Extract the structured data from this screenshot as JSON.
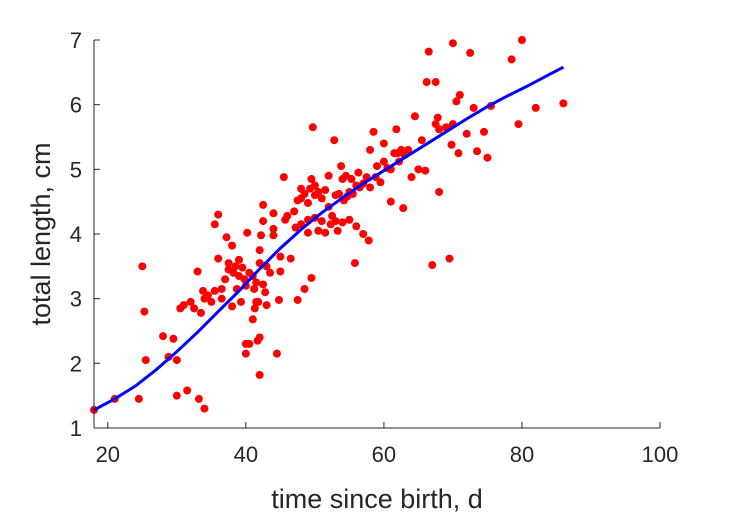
{
  "chart_data": {
    "type": "scatter",
    "xlabel": "time since birth, d",
    "ylabel": "total length, cm",
    "xlim": [
      18,
      100
    ],
    "ylim": [
      1,
      7
    ],
    "xticks": [
      20,
      40,
      60,
      80,
      100
    ],
    "yticks": [
      1,
      2,
      3,
      4,
      5,
      6,
      7
    ],
    "grid": false,
    "colors": {
      "points": "#ff0000",
      "curve": "#0000ff",
      "axes": "#262626"
    },
    "points": [
      {
        "x": 18,
        "y": 1.28
      },
      {
        "x": 21,
        "y": 1.45
      },
      {
        "x": 24.5,
        "y": 1.45
      },
      {
        "x": 25,
        "y": 3.5
      },
      {
        "x": 25.3,
        "y": 2.8
      },
      {
        "x": 25.5,
        "y": 2.05
      },
      {
        "x": 28,
        "y": 2.42
      },
      {
        "x": 28.8,
        "y": 2.1
      },
      {
        "x": 29.5,
        "y": 2.38
      },
      {
        "x": 30,
        "y": 1.5
      },
      {
        "x": 30,
        "y": 2.05
      },
      {
        "x": 30.5,
        "y": 2.85
      },
      {
        "x": 31,
        "y": 2.9
      },
      {
        "x": 31.5,
        "y": 1.58
      },
      {
        "x": 32,
        "y": 2.95
      },
      {
        "x": 32.5,
        "y": 2.85
      },
      {
        "x": 33,
        "y": 3.42
      },
      {
        "x": 33.2,
        "y": 1.45
      },
      {
        "x": 33.5,
        "y": 2.78
      },
      {
        "x": 33.8,
        "y": 3.12
      },
      {
        "x": 34,
        "y": 1.3
      },
      {
        "x": 34,
        "y": 3.0
      },
      {
        "x": 34.5,
        "y": 3.05
      },
      {
        "x": 35,
        "y": 2.95
      },
      {
        "x": 35.5,
        "y": 3.12
      },
      {
        "x": 35.5,
        "y": 4.15
      },
      {
        "x": 36,
        "y": 4.3
      },
      {
        "x": 36,
        "y": 3.62
      },
      {
        "x": 36.5,
        "y": 3.0
      },
      {
        "x": 36.5,
        "y": 3.15
      },
      {
        "x": 37,
        "y": 3.3
      },
      {
        "x": 37.2,
        "y": 3.95
      },
      {
        "x": 37.5,
        "y": 3.45
      },
      {
        "x": 37.5,
        "y": 3.55
      },
      {
        "x": 38,
        "y": 3.82
      },
      {
        "x": 38,
        "y": 2.88
      },
      {
        "x": 38.2,
        "y": 3.4
      },
      {
        "x": 38.5,
        "y": 3.5
      },
      {
        "x": 38.7,
        "y": 3.15
      },
      {
        "x": 39,
        "y": 3.35
      },
      {
        "x": 39,
        "y": 3.6
      },
      {
        "x": 39.3,
        "y": 2.95
      },
      {
        "x": 39.5,
        "y": 3.48
      },
      {
        "x": 39.8,
        "y": 3.3
      },
      {
        "x": 40,
        "y": 2.15
      },
      {
        "x": 40,
        "y": 2.3
      },
      {
        "x": 40,
        "y": 3.2
      },
      {
        "x": 40.2,
        "y": 4.02
      },
      {
        "x": 40.5,
        "y": 3.4
      },
      {
        "x": 40.5,
        "y": 2.3
      },
      {
        "x": 41,
        "y": 3.35
      },
      {
        "x": 41,
        "y": 2.68
      },
      {
        "x": 41.2,
        "y": 3.15
      },
      {
        "x": 41.3,
        "y": 2.85
      },
      {
        "x": 41.5,
        "y": 3.25
      },
      {
        "x": 41.5,
        "y": 2.95
      },
      {
        "x": 41.7,
        "y": 2.35
      },
      {
        "x": 41.8,
        "y": 2.95
      },
      {
        "x": 42,
        "y": 2.4
      },
      {
        "x": 42,
        "y": 1.82
      },
      {
        "x": 42,
        "y": 3.55
      },
      {
        "x": 42,
        "y": 3.75
      },
      {
        "x": 42.2,
        "y": 3.98
      },
      {
        "x": 42.5,
        "y": 4.45
      },
      {
        "x": 42.5,
        "y": 4.2
      },
      {
        "x": 42.5,
        "y": 3.22
      },
      {
        "x": 42.8,
        "y": 3.1
      },
      {
        "x": 43,
        "y": 3.5
      },
      {
        "x": 43,
        "y": 2.9
      },
      {
        "x": 43.5,
        "y": 3.4
      },
      {
        "x": 44,
        "y": 4.32
      },
      {
        "x": 44,
        "y": 4.08
      },
      {
        "x": 44,
        "y": 3.98
      },
      {
        "x": 44.5,
        "y": 2.15
      },
      {
        "x": 44.8,
        "y": 2.98
      },
      {
        "x": 45,
        "y": 3.65
      },
      {
        "x": 45,
        "y": 3.42
      },
      {
        "x": 45.5,
        "y": 4.88
      },
      {
        "x": 45.7,
        "y": 4.22
      },
      {
        "x": 46,
        "y": 4.28
      },
      {
        "x": 46.5,
        "y": 3.62
      },
      {
        "x": 47,
        "y": 4.35
      },
      {
        "x": 47.2,
        "y": 4.1
      },
      {
        "x": 47.5,
        "y": 2.98
      },
      {
        "x": 47.5,
        "y": 4.52
      },
      {
        "x": 48,
        "y": 4.15
      },
      {
        "x": 48,
        "y": 4.55
      },
      {
        "x": 48,
        "y": 4.7
      },
      {
        "x": 48.5,
        "y": 3.15
      },
      {
        "x": 48.5,
        "y": 4.62
      },
      {
        "x": 49,
        "y": 4.22
      },
      {
        "x": 49,
        "y": 4.48
      },
      {
        "x": 49,
        "y": 4.02
      },
      {
        "x": 49.3,
        "y": 4.7
      },
      {
        "x": 49.5,
        "y": 3.32
      },
      {
        "x": 49.5,
        "y": 4.85
      },
      {
        "x": 49.7,
        "y": 5.65
      },
      {
        "x": 50,
        "y": 4.75
      },
      {
        "x": 50,
        "y": 4.6
      },
      {
        "x": 50,
        "y": 4.25
      },
      {
        "x": 50.5,
        "y": 4.05
      },
      {
        "x": 50.5,
        "y": 4.65
      },
      {
        "x": 51,
        "y": 4.55
      },
      {
        "x": 51,
        "y": 4.2
      },
      {
        "x": 51.5,
        "y": 4.02
      },
      {
        "x": 51.5,
        "y": 4.68
      },
      {
        "x": 52,
        "y": 4.9
      },
      {
        "x": 52,
        "y": 4.42
      },
      {
        "x": 52.3,
        "y": 4.15
      },
      {
        "x": 52.5,
        "y": 4.28
      },
      {
        "x": 52.8,
        "y": 5.45
      },
      {
        "x": 53,
        "y": 4.6
      },
      {
        "x": 53,
        "y": 4.2
      },
      {
        "x": 53.3,
        "y": 4.05
      },
      {
        "x": 53.5,
        "y": 4.62
      },
      {
        "x": 53.8,
        "y": 5.05
      },
      {
        "x": 54,
        "y": 4.85
      },
      {
        "x": 54,
        "y": 4.18
      },
      {
        "x": 54.2,
        "y": 4.52
      },
      {
        "x": 54.5,
        "y": 4.9
      },
      {
        "x": 54.7,
        "y": 4.58
      },
      {
        "x": 55,
        "y": 4.22
      },
      {
        "x": 55,
        "y": 4.65
      },
      {
        "x": 55.3,
        "y": 4.85
      },
      {
        "x": 55.5,
        "y": 4.62
      },
      {
        "x": 55.8,
        "y": 3.55
      },
      {
        "x": 56,
        "y": 4.75
      },
      {
        "x": 56,
        "y": 4.12
      },
      {
        "x": 56.3,
        "y": 4.95
      },
      {
        "x": 56.5,
        "y": 4.72
      },
      {
        "x": 57,
        "y": 4.78
      },
      {
        "x": 57,
        "y": 4.0
      },
      {
        "x": 57.5,
        "y": 4.88
      },
      {
        "x": 57.8,
        "y": 3.9
      },
      {
        "x": 58,
        "y": 4.72
      },
      {
        "x": 58,
        "y": 5.3
      },
      {
        "x": 58.5,
        "y": 5.58
      },
      {
        "x": 58.8,
        "y": 4.88
      },
      {
        "x": 59,
        "y": 5.05
      },
      {
        "x": 59.5,
        "y": 4.8
      },
      {
        "x": 60,
        "y": 5.4
      },
      {
        "x": 60,
        "y": 5.12
      },
      {
        "x": 60.5,
        "y": 5.02
      },
      {
        "x": 61,
        "y": 4.5
      },
      {
        "x": 61,
        "y": 5.0
      },
      {
        "x": 61.5,
        "y": 5.25
      },
      {
        "x": 61.8,
        "y": 5.62
      },
      {
        "x": 62,
        "y": 5.25
      },
      {
        "x": 62.2,
        "y": 5.12
      },
      {
        "x": 62.5,
        "y": 5.3
      },
      {
        "x": 62.8,
        "y": 4.4
      },
      {
        "x": 63,
        "y": 5.22
      },
      {
        "x": 63.5,
        "y": 5.3
      },
      {
        "x": 64,
        "y": 4.88
      },
      {
        "x": 64.5,
        "y": 5.82
      },
      {
        "x": 65,
        "y": 5.0
      },
      {
        "x": 65.5,
        "y": 5.45
      },
      {
        "x": 66,
        "y": 4.98
      },
      {
        "x": 66.2,
        "y": 6.35
      },
      {
        "x": 66.5,
        "y": 6.82
      },
      {
        "x": 67,
        "y": 3.52
      },
      {
        "x": 67.5,
        "y": 5.7
      },
      {
        "x": 67.5,
        "y": 6.35
      },
      {
        "x": 67.8,
        "y": 5.8
      },
      {
        "x": 68,
        "y": 4.65
      },
      {
        "x": 68,
        "y": 5.62
      },
      {
        "x": 69,
        "y": 5.65
      },
      {
        "x": 69.5,
        "y": 3.62
      },
      {
        "x": 69.8,
        "y": 5.38
      },
      {
        "x": 70,
        "y": 6.95
      },
      {
        "x": 70,
        "y": 5.7
      },
      {
        "x": 70.5,
        "y": 6.05
      },
      {
        "x": 70.8,
        "y": 5.25
      },
      {
        "x": 71,
        "y": 6.15
      },
      {
        "x": 72,
        "y": 5.55
      },
      {
        "x": 72.5,
        "y": 6.8
      },
      {
        "x": 73,
        "y": 5.95
      },
      {
        "x": 73.5,
        "y": 5.28
      },
      {
        "x": 74.5,
        "y": 5.58
      },
      {
        "x": 75,
        "y": 5.18
      },
      {
        "x": 75.5,
        "y": 5.98
      },
      {
        "x": 78.5,
        "y": 6.7
      },
      {
        "x": 79.5,
        "y": 5.7
      },
      {
        "x": 80,
        "y": 7.0
      },
      {
        "x": 82,
        "y": 5.95
      },
      {
        "x": 86,
        "y": 6.02
      }
    ],
    "curve": [
      {
        "x": 18,
        "y": 1.28
      },
      {
        "x": 21,
        "y": 1.45
      },
      {
        "x": 24,
        "y": 1.65
      },
      {
        "x": 27,
        "y": 1.9
      },
      {
        "x": 30,
        "y": 2.18
      },
      {
        "x": 33,
        "y": 2.48
      },
      {
        "x": 36,
        "y": 2.8
      },
      {
        "x": 39,
        "y": 3.12
      },
      {
        "x": 42,
        "y": 3.46
      },
      {
        "x": 45,
        "y": 3.78
      },
      {
        "x": 48,
        "y": 4.07
      },
      {
        "x": 51,
        "y": 4.33
      },
      {
        "x": 54,
        "y": 4.56
      },
      {
        "x": 57,
        "y": 4.78
      },
      {
        "x": 60,
        "y": 4.98
      },
      {
        "x": 63,
        "y": 5.18
      },
      {
        "x": 66,
        "y": 5.38
      },
      {
        "x": 69,
        "y": 5.58
      },
      {
        "x": 72,
        "y": 5.78
      },
      {
        "x": 75,
        "y": 5.97
      },
      {
        "x": 78,
        "y": 6.14
      },
      {
        "x": 81,
        "y": 6.3
      },
      {
        "x": 84,
        "y": 6.47
      },
      {
        "x": 86,
        "y": 6.58
      }
    ]
  }
}
